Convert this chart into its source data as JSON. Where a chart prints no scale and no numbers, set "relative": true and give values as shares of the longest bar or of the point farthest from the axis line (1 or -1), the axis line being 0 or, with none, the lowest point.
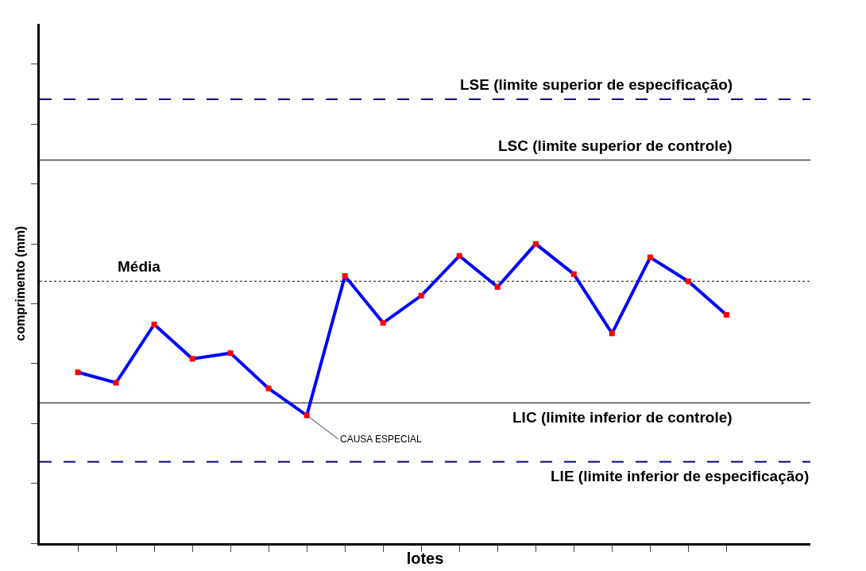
{
  "chart_data": {
    "type": "line",
    "relative": true,
    "xlabel": "lotes",
    "ylabel": "comprimento (mm)",
    "categories": [
      null,
      null,
      null,
      null,
      null,
      null,
      null,
      null,
      null,
      null,
      null,
      null,
      null,
      null,
      null,
      null,
      null,
      null
    ],
    "series": [
      {
        "color": "#0000ff",
        "colors": [
          "#ff0000",
          "#ff0000",
          "#ff0000",
          "#ff0000",
          "#ff0000",
          "#ff0000",
          "#ff0000",
          "#ff0000",
          "#ff0000",
          "#ff0000",
          "#ff0000",
          "#ff0000",
          "#ff0000",
          "#ff0000",
          "#ff0000",
          "#ff0000",
          "#ff0000",
          "#ff0000"
        ],
        "values": [
          0.571,
          0.536,
          0.731,
          0.616,
          0.635,
          0.517,
          0.427,
          0.893,
          0.736,
          0.827,
          0.96,
          0.856,
          1.0,
          0.899,
          0.701,
          0.955,
          0.875,
          0.763
        ]
      }
    ],
    "ref_lines": [
      {
        "axis": "y",
        "value": 1.483,
        "label": "LSE (limite superior de especificação)",
        "color": "#000080",
        "line_style": "dashed"
      },
      {
        "axis": "y",
        "value": 1.28,
        "label": "LSC (limite superior de controle)",
        "color": "#000000",
        "line_style": "solid"
      },
      {
        "axis": "y",
        "value": 0.875,
        "label": "Média",
        "color": "#000000",
        "line_style": "dotted"
      },
      {
        "axis": "y",
        "value": 0.469,
        "label": "LIC (limite inferior de controle)",
        "color": "#000000",
        "line_style": "solid"
      },
      {
        "axis": "y",
        "value": 0.272,
        "label": "LIE (limite inferior de especificação)",
        "color": "#000080",
        "line_style": "dashed"
      }
    ],
    "annotations": [
      "CAUSA ESPECIAL"
    ],
    "marker": "square",
    "line_style": "solid"
  }
}
